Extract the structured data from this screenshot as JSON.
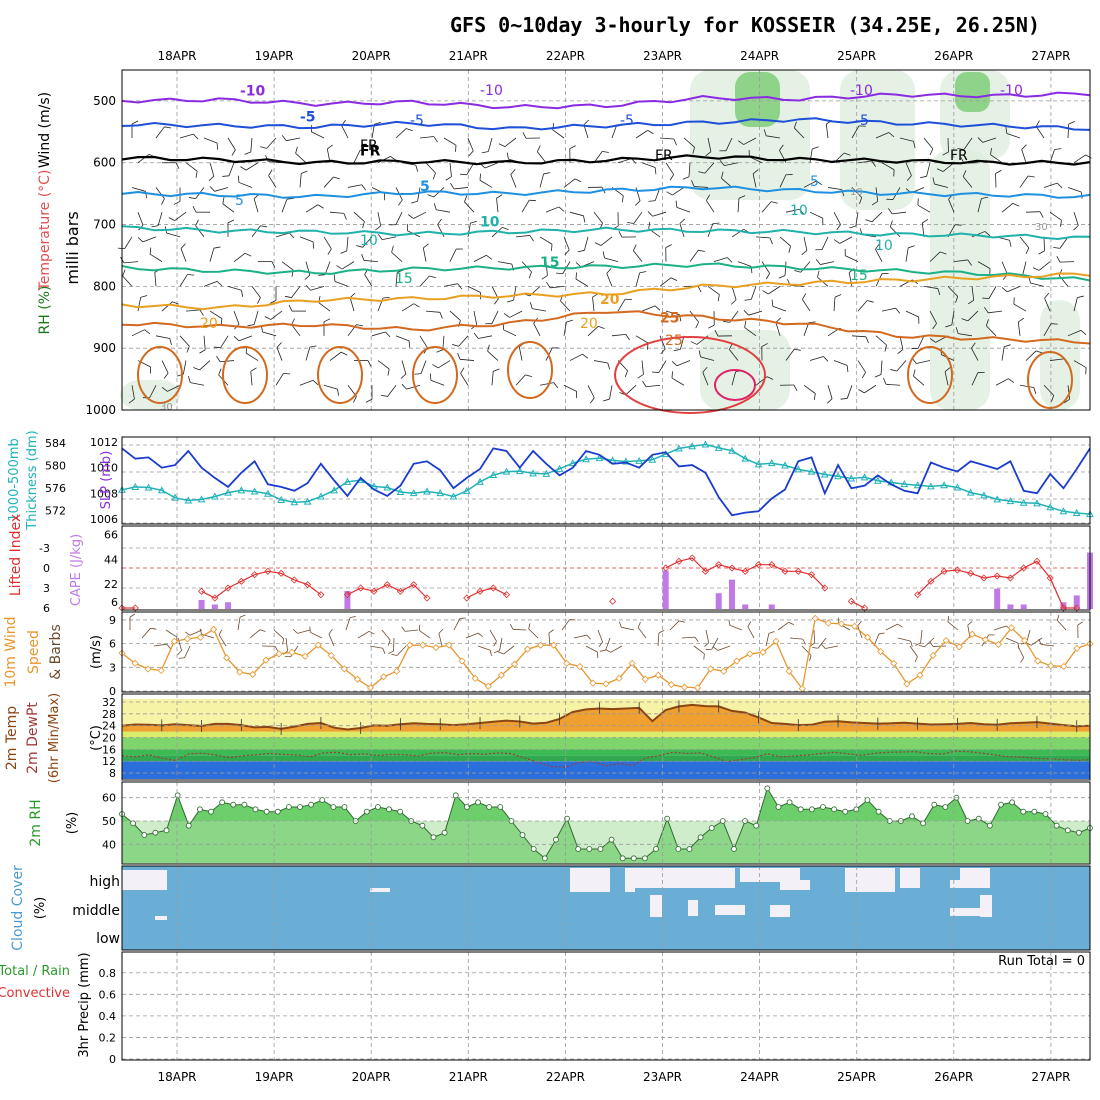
{
  "title": "GFS 0~10day 3-hourly for KOSSEIR (34.25E, 26.25N)",
  "date_labels": [
    "18APR",
    "19APR",
    "20APR",
    "21APR",
    "22APR",
    "23APR",
    "24APR",
    "25APR",
    "26APR",
    "27APR"
  ],
  "colors": {
    "frame": "#000000",
    "grid": "#9a9a9a",
    "slp": "#1a3ccc",
    "thick": "#20b2b8",
    "li": "#e03030",
    "cape": "#c07ae8",
    "wind": "#e8962e",
    "barb": "#6b4a2e",
    "temp_fill": "#f0a030",
    "temp_line": "#8b4513",
    "dew": "#a03a3a",
    "rh_fill": "#6ccf6c",
    "rh_light": "#a8dca0",
    "cloud": "#6aaed6",
    "cloud_clear": "#f4f0f8"
  },
  "chart_data": [
    {
      "type": "contour",
      "id": "upper_air",
      "ylabel": "milli bars",
      "side_labels": [
        "RH (%)",
        "Temperature (°C)",
        "Wind (m/s)"
      ],
      "y_ticks": [
        500,
        600,
        700,
        800,
        900,
        1000
      ],
      "ylim": [
        1000,
        450
      ],
      "isotherms": [
        {
          "label": "-10",
          "color": "#8a2be2",
          "level_mb": [
            500,
            498,
            505,
            502,
            510,
            508,
            495,
            497,
            490,
            492,
            488
          ]
        },
        {
          "label": "-5",
          "color": "#1e4fd8",
          "level_mb": [
            538,
            540,
            542,
            536,
            545,
            540,
            535,
            530,
            536,
            540,
            545
          ]
        },
        {
          "label": "FR",
          "color": "#000000",
          "level_mb": [
            592,
            595,
            600,
            598,
            600,
            596,
            590,
            595,
            597,
            600,
            600
          ]
        },
        {
          "label": "5",
          "color": "#1e90e0",
          "level_mb": [
            650,
            652,
            655,
            648,
            650,
            645,
            640,
            645,
            650,
            652,
            655
          ]
        },
        {
          "label": "10",
          "color": "#20b2aa",
          "level_mb": [
            705,
            710,
            712,
            715,
            712,
            708,
            710,
            712,
            716,
            718,
            722
          ]
        },
        {
          "label": "15",
          "color": "#1cb089",
          "level_mb": [
            770,
            775,
            778,
            772,
            770,
            768,
            765,
            770,
            775,
            780,
            790
          ]
        },
        {
          "label": "20",
          "color": "#e8a020",
          "level_mb": [
            830,
            835,
            822,
            820,
            815,
            812,
            800,
            795,
            790,
            785,
            780
          ]
        },
        {
          "label": "25",
          "color": "#d2691e",
          "level_mb": [
            860,
            865,
            862,
            870,
            860,
            840,
            850,
            860,
            880,
            885,
            890
          ]
        }
      ],
      "contour_labels": [
        "-10",
        "-10",
        "-10",
        "-5",
        "-5",
        "-5",
        "FR",
        "FR",
        "FR",
        "5",
        "5",
        "10",
        "10",
        "10",
        "15",
        "15",
        "20",
        "20",
        "25",
        "10",
        "30",
        "30"
      ]
    },
    {
      "type": "line",
      "id": "slp_thickness",
      "left_labels": [
        "1000-500mb",
        "Thickness (dm)"
      ],
      "right_labels": [
        "SLP (mb)"
      ],
      "y_ticks_left": [
        "584",
        "580",
        "576",
        "572"
      ],
      "y_ticks_right": [
        "1012",
        "1010",
        "1008",
        "1006"
      ],
      "ylim_left": [
        570,
        584.5
      ],
      "ylim_right": [
        1006,
        1012
      ],
      "series": [
        {
          "name": "SLP (mb)",
          "axis": "right",
          "values": [
            1011.5,
            1010.7,
            1010.8,
            1010.0,
            1010.2,
            1011.3,
            1010.0,
            1009.2,
            1008.5,
            1009.6,
            1010.5,
            1008.7,
            1008.5,
            1008.2,
            1008.8,
            1010.3,
            1009.0,
            1007.8,
            1009.2,
            1008.3,
            1007.8,
            1008.6,
            1010.3,
            1010.5,
            1009.8,
            1008.4,
            1009.2,
            1009.9,
            1011.5,
            1011.3,
            1010.0,
            1011.3,
            1010.3,
            1009.4,
            1010.0,
            1011.3,
            1011.0,
            1010.3,
            1010.4,
            1010.0,
            1011.0,
            1011.2,
            1010.1,
            1010.2,
            1009.6,
            1007.7,
            1006.3,
            1006.5,
            1006.6,
            1007.6,
            1008.3,
            1010.5,
            1010.8,
            1008.0,
            1010.2,
            1008.4,
            1008.6,
            1009.4,
            1008.7,
            1008.2,
            1008.0,
            1010.4,
            1010.0,
            1009.7,
            1010.5,
            1010.2,
            1009.9,
            1010.5,
            1008.2,
            1008.0,
            1009.5,
            1008.4,
            1009.9,
            1011.5
          ]
        },
        {
          "name": "1000-500mb Thickness (dm)",
          "axis": "left",
          "values": [
            575.7,
            576.2,
            576.1,
            575.6,
            574.3,
            573.8,
            574.0,
            574.5,
            575.2,
            575.6,
            575.4,
            575.0,
            573.9,
            573.5,
            573.6,
            574.5,
            575.6,
            577.1,
            577.4,
            576.3,
            576.1,
            575.3,
            575.1,
            575.4,
            575.1,
            574.5,
            575.5,
            577.1,
            578.3,
            578.9,
            579.0,
            578.6,
            578.5,
            579.4,
            580.4,
            581.1,
            581.3,
            580.9,
            580.7,
            580.8,
            581.0,
            582.0,
            583.0,
            583.4,
            583.7,
            583.1,
            582.6,
            581.2,
            580.2,
            580.4,
            580.0,
            579.3,
            578.9,
            578.4,
            578.1,
            577.7,
            577.9,
            577.3,
            577.0,
            576.7,
            576.5,
            576.3,
            576.5,
            576.1,
            575.2,
            574.7,
            574.0,
            573.7,
            573.4,
            573.3,
            572.6,
            571.9,
            571.6,
            571.4
          ]
        }
      ]
    },
    {
      "type": "bar+line",
      "id": "li_cape",
      "left_labels": [
        "Lifted Index"
      ],
      "right_labels": [
        "CAPE (J/kg)"
      ],
      "y_ticks_left": [
        "-3",
        "0",
        "3",
        "6"
      ],
      "y_ticks_right": [
        "66",
        "44",
        "22",
        "6"
      ],
      "ylim_left": [
        6,
        -6
      ],
      "series": [
        {
          "name": "Lifted Index",
          "values": [
            6,
            6,
            null,
            null,
            null,
            null,
            3.5,
            4.5,
            3,
            2,
            1,
            0.5,
            0.8,
            1.8,
            2.5,
            4,
            null,
            4,
            3,
            3.5,
            2.5,
            3.5,
            2.5,
            4.5,
            null,
            null,
            4.5,
            3.5,
            3,
            4,
            null,
            null,
            null,
            null,
            null,
            null,
            null,
            5,
            null,
            null,
            null,
            0,
            -1,
            -1.5,
            0.5,
            -0.5,
            0,
            0.5,
            -0.5,
            -0.5,
            0.5,
            0.5,
            1,
            3,
            null,
            5,
            6,
            null,
            null,
            null,
            4,
            2,
            0.5,
            0.3,
            0.8,
            1.5,
            1.2,
            1.5,
            0,
            -1,
            1.5,
            6,
            6,
            null
          ]
        },
        {
          "name": "CAPE (J/kg)",
          "values": [
            0,
            0,
            0,
            0,
            0,
            0,
            8,
            4,
            6,
            0,
            0,
            0,
            0,
            0,
            0,
            0,
            0,
            16,
            0,
            0,
            0,
            0,
            0,
            0,
            0,
            0,
            0,
            0,
            0,
            0,
            0,
            0,
            0,
            0,
            0,
            0,
            0,
            0,
            0,
            0,
            0,
            34,
            0,
            0,
            0,
            14,
            26,
            4,
            0,
            4,
            0,
            0,
            0,
            0,
            0,
            0,
            0,
            0,
            0,
            0,
            0,
            0,
            0,
            0,
            0,
            0,
            18,
            4,
            4,
            0,
            0,
            6,
            12,
            50
          ]
        }
      ]
    },
    {
      "type": "line",
      "id": "wind10m",
      "left_labels": [
        "10m Wind",
        "Speed",
        "& Barbs"
      ],
      "right_labels": [
        "(m/s)"
      ],
      "y_ticks": [
        "9",
        "6",
        "3",
        "0"
      ],
      "ylim": [
        0,
        9.5
      ],
      "series": [
        {
          "name": "10m Wind Speed",
          "values": [
            4.8,
            3.5,
            2.8,
            2.6,
            6.3,
            6.6,
            6.8,
            7.8,
            4.2,
            2.4,
            2.1,
            3.9,
            4.7,
            4.9,
            4.4,
            5.8,
            4.5,
            2.8,
            1.5,
            0.4,
            1.8,
            2.5,
            5.8,
            5.8,
            5.5,
            5.8,
            3.8,
            1.6,
            0.6,
            2.0,
            3.4,
            5.3,
            5.8,
            5.8,
            3.5,
            3.1,
            1.0,
            0.9,
            1.6,
            3.5,
            1.5,
            2.0,
            0.8,
            0.5,
            0.4,
            2.8,
            2.5,
            3.8,
            4.7,
            4.9,
            6.3,
            2.5,
            0.3,
            9.2,
            8.6,
            8.5,
            8.2,
            6.8,
            5.0,
            3.5,
            0.9,
            2.0,
            4.5,
            6.4,
            5.6,
            7.2,
            6.5,
            5.9,
            8.0,
            6.4,
            3.8,
            3.2,
            3.1,
            5.4,
            6.0
          ]
        }
      ]
    },
    {
      "type": "area+line",
      "id": "temp_dew",
      "left_labels": [
        "2m Temp",
        "2m DewPt",
        "(6hr Min/Max)"
      ],
      "right_labels": [
        "(°C)"
      ],
      "y_ticks": [
        "32",
        "28",
        "24",
        "20",
        "16",
        "12",
        "8"
      ],
      "ylim": [
        6,
        33
      ],
      "series": [
        {
          "name": "2m Temp",
          "values": [
            24,
            24.4,
            24.3,
            24.1,
            24.5,
            24.2,
            23.9,
            24.6,
            24.6,
            24.2,
            23.4,
            23.6,
            22.9,
            23.7,
            24.6,
            24.9,
            23.3,
            22.7,
            23.2,
            24.1,
            24.0,
            24.5,
            24.8,
            24.6,
            24.5,
            24.2,
            24.5,
            24.9,
            25.3,
            25.7,
            25.4,
            24.7,
            25.0,
            26.3,
            28.6,
            29.5,
            29.8,
            29.6,
            29.8,
            30.0,
            25.5,
            29.3,
            30.5,
            31.0,
            30.6,
            30.5,
            29.0,
            28.4,
            26.8,
            24.9,
            24.6,
            24.2,
            24.3,
            25.3,
            25.5,
            25.1,
            24.9,
            24.7,
            24.8,
            25.0,
            24.7,
            24.4,
            24.5,
            24.6,
            24.9,
            24.5,
            24.3,
            24.8,
            25.0,
            25.2,
            24.7,
            24.2,
            23.8,
            24.0
          ]
        },
        {
          "name": "2m DewPt",
          "values": [
            13.9,
            13.5,
            14.2,
            13.0,
            12.2,
            14.5,
            14.7,
            14.1,
            13.2,
            13.9,
            14.2,
            14.6,
            14.3,
            14.1,
            13.5,
            14.8,
            15.0,
            14.2,
            14.5,
            13.9,
            14.3,
            14.2,
            13.8,
            14.7,
            14.9,
            14.2,
            14.6,
            14.3,
            14.8,
            14.5,
            13.0,
            11.5,
            10.2,
            10.0,
            11.5,
            12.0,
            10.5,
            11.2,
            10.6,
            13.2,
            14.0,
            15.0,
            14.6,
            14.8,
            13.5,
            11.8,
            12.5,
            13.2,
            14.5,
            13.5,
            13.8,
            14.1,
            14.6,
            15.0,
            14.5,
            14.0,
            14.7,
            15.0,
            15.1,
            15.2,
            14.6,
            14.4,
            15.4,
            15.2,
            14.7,
            14.1,
            13.5,
            13.4,
            13.0,
            12.8,
            12.5,
            12.3,
            12.5
          ]
        }
      ]
    },
    {
      "type": "area",
      "id": "rh2m",
      "left_labels": [
        "2m RH"
      ],
      "right_labels": [
        "(%)"
      ],
      "y_ticks": [
        "60",
        "50",
        "40"
      ],
      "ylim": [
        32,
        65
      ],
      "series": [
        {
          "name": "2m RH",
          "values": [
            53,
            49,
            44,
            45,
            46,
            61,
            48,
            55,
            54,
            58,
            57,
            57,
            55,
            54,
            54,
            56,
            56,
            57,
            59,
            56,
            56,
            50,
            54,
            56,
            55,
            54,
            50,
            48,
            43,
            45,
            61,
            56,
            58,
            56,
            56,
            50,
            44,
            38,
            34,
            42,
            51,
            38,
            38,
            38,
            42,
            34,
            34,
            34,
            38,
            51,
            38,
            38,
            43,
            47,
            50,
            38,
            50,
            48,
            64,
            56,
            58,
            55,
            55,
            56,
            55,
            54,
            55,
            59,
            54,
            50,
            50,
            52,
            49,
            57,
            56,
            60,
            50,
            51,
            48,
            57,
            58,
            54,
            54,
            53,
            48,
            46,
            45,
            47
          ]
        }
      ]
    },
    {
      "type": "heatmap",
      "id": "cloud_cover",
      "left_labels": [
        "Cloud Cover",
        "(%)"
      ],
      "y_categories": [
        "high",
        "middle",
        "low"
      ]
    },
    {
      "type": "bar",
      "id": "precip",
      "left_labels": [
        "Total / Rain",
        "Convective",
        "3hr Precip (mm)"
      ],
      "y_ticks": [
        "0.8",
        "0.6",
        "0.4",
        "0.2",
        "0"
      ],
      "ylim": [
        0,
        0.9
      ],
      "note": "Run Total = 0",
      "series": [
        {
          "name": "Total",
          "values": []
        },
        {
          "name": "Convective",
          "values": []
        }
      ]
    }
  ]
}
